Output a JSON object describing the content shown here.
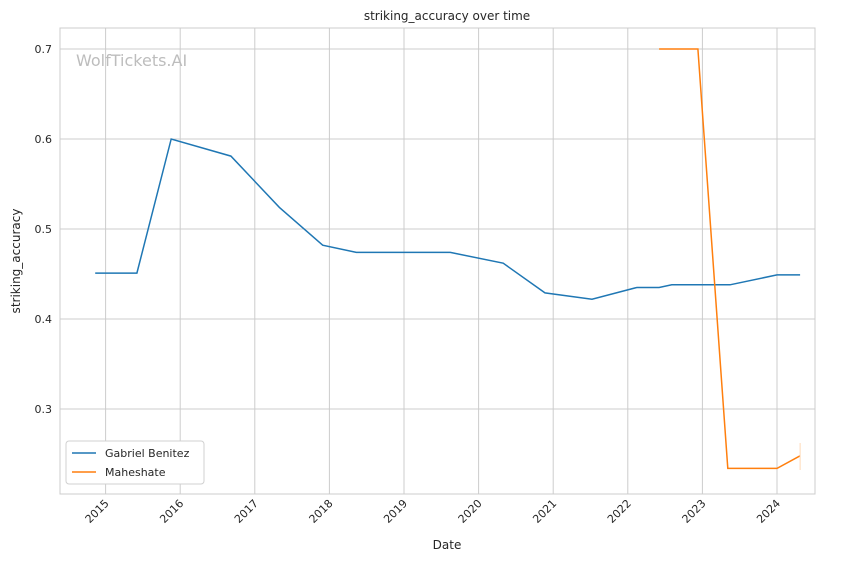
{
  "watermark": "WolfTickets.AI",
  "chart_data": {
    "type": "line",
    "title": "striking_accuracy over time",
    "xlabel": "Date",
    "ylabel": "striking_accuracy",
    "xlim": [
      2014.3,
      2024.7
    ],
    "ylim": [
      0.206,
      0.723
    ],
    "x_ticks": [
      "2015",
      "2016",
      "2017",
      "2018",
      "2019",
      "2020",
      "2021",
      "2022",
      "2023",
      "2024"
    ],
    "y_ticks": [
      "0.3",
      "0.4",
      "0.5",
      "0.6",
      "0.7"
    ],
    "grid": true,
    "legend": "lower-left",
    "series": [
      {
        "name": "Gabriel Benitez",
        "color": "#1f77b4",
        "x": [
          2014.86,
          2015.42,
          2015.88,
          2016.68,
          2017.33,
          2017.91,
          2018.36,
          2019.62,
          2020.33,
          2020.89,
          2021.52,
          2022.12,
          2022.42,
          2022.59,
          2023.37,
          2024.0,
          2024.31
        ],
        "y": [
          0.451,
          0.451,
          0.6,
          0.581,
          0.524,
          0.482,
          0.474,
          0.474,
          0.462,
          0.429,
          0.422,
          0.435,
          0.435,
          0.438,
          0.438,
          0.449,
          0.449
        ]
      },
      {
        "name": "Maheshate",
        "color": "#ff7f0e",
        "x": [
          2022.42,
          2022.94,
          2023.34,
          2024.0,
          2024.31
        ],
        "y": [
          0.7,
          0.7,
          0.234,
          0.234,
          0.248
        ]
      }
    ]
  }
}
